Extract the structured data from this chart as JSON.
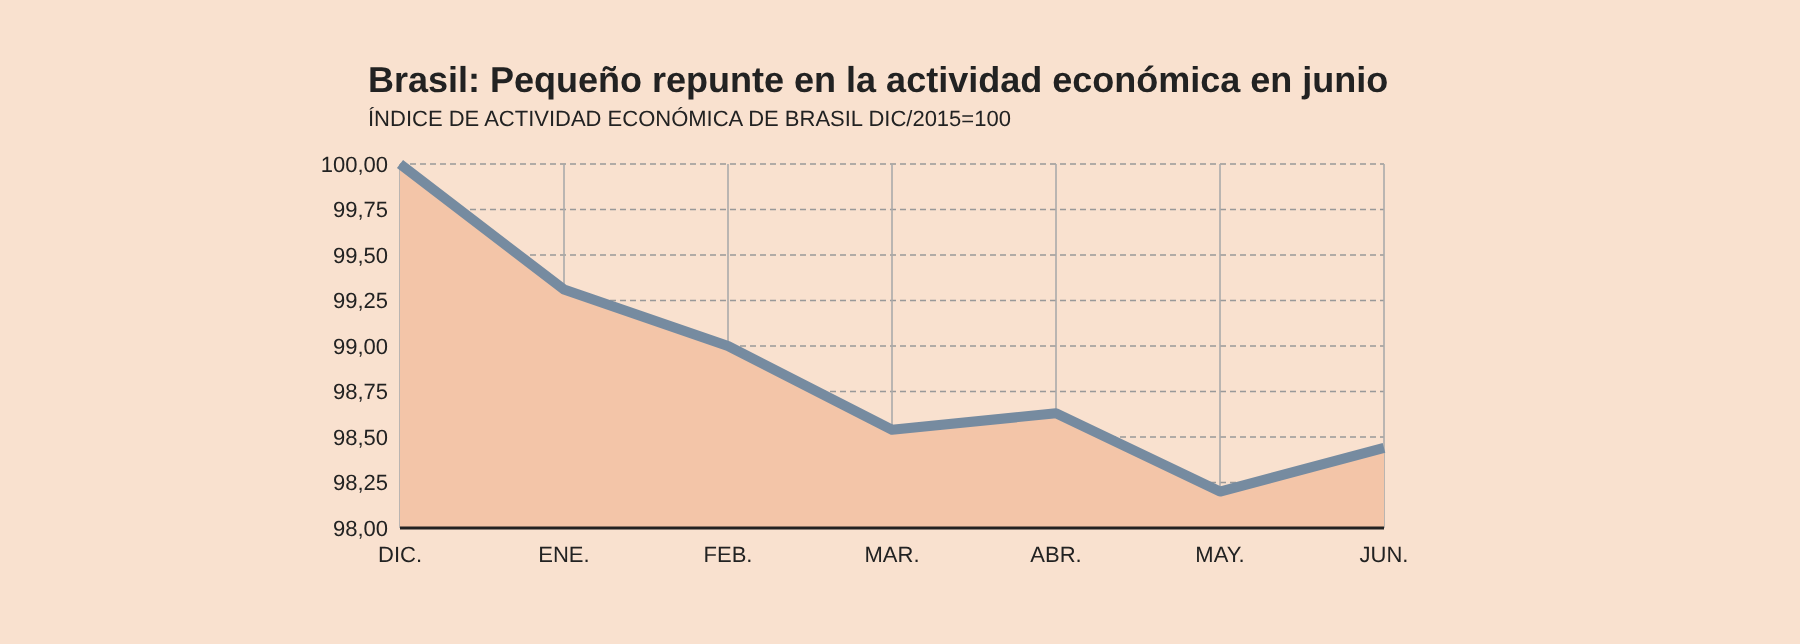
{
  "chart_data": {
    "type": "area",
    "title": "Brasil: Pequeño repunte en la actividad económica en junio",
    "subtitle": "ÍNDICE DE ACTIVIDAD ECONÓMICA DE BRASIL  DIC/2015=100",
    "categories": [
      "DIC.",
      "ENE.",
      "FEB.",
      "MAR.",
      "ABR.",
      "MAY.",
      "JUN."
    ],
    "series": [
      {
        "color": "#768ba0",
        "values": [
          100.0,
          99.31,
          99.0,
          98.54,
          98.63,
          98.2,
          98.44
        ]
      }
    ],
    "ylim": [
      98,
      100
    ],
    "yticks": [
      {
        "value": 98,
        "label": "98,00"
      },
      {
        "value": 98.25,
        "label": "98,25"
      },
      {
        "value": 98.5,
        "label": "98,50"
      },
      {
        "value": 98.75,
        "label": "98,75"
      },
      {
        "value": 99,
        "label": "99,00"
      },
      {
        "value": 99.25,
        "label": "99,25"
      },
      {
        "value": 99.5,
        "label": "99,50"
      },
      {
        "value": 99.75,
        "label": "99,75"
      },
      {
        "value": 100,
        "label": "100,00"
      }
    ],
    "grid": true
  }
}
